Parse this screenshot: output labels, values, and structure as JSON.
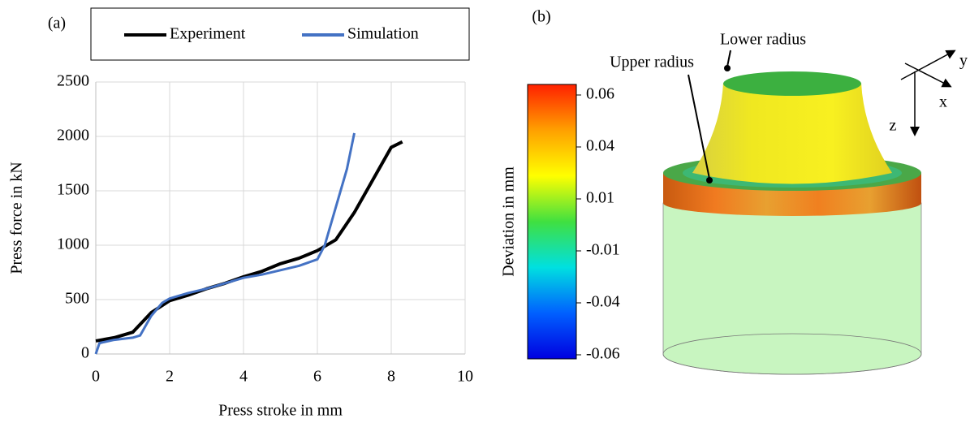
{
  "chart_data": [
    {
      "type": "line",
      "panel_label": "(a)",
      "x_label": "Press stroke in mm",
      "y_label": "Press force in kN",
      "xlim": [
        0,
        10
      ],
      "xticks": [
        0,
        2,
        4,
        6,
        8,
        10
      ],
      "ylim": [
        0,
        2500
      ],
      "yticks": [
        0,
        500,
        1000,
        1500,
        2000,
        2500
      ],
      "grid": true,
      "series": [
        {
          "name": "Experiment",
          "color": "#000000",
          "x": [
            0,
            0.5,
            1,
            1.5,
            2,
            2.5,
            3,
            3.5,
            4,
            4.5,
            5,
            5.5,
            6,
            6.5,
            7,
            7.5,
            8,
            8.3
          ],
          "values": [
            120,
            150,
            200,
            380,
            490,
            540,
            600,
            650,
            710,
            760,
            830,
            880,
            950,
            1050,
            1300,
            1600,
            1900,
            1950
          ]
        },
        {
          "name": "Simulation",
          "color": "#4472c4",
          "x": [
            0,
            0.1,
            0.5,
            1,
            1.2,
            1.5,
            1.8,
            2,
            2.5,
            3,
            3.5,
            4,
            4.5,
            5,
            5.5,
            6,
            6.2,
            6.5,
            6.8,
            7
          ],
          "values": [
            0,
            100,
            130,
            150,
            170,
            350,
            470,
            510,
            560,
            600,
            650,
            700,
            730,
            770,
            810,
            870,
            1000,
            1350,
            1700,
            2030
          ]
        }
      ]
    },
    {
      "type": "colorbar",
      "panel_label": "(b)",
      "title": "Deviation in mm",
      "ticks": [
        0.06,
        0.04,
        0.01,
        -0.01,
        -0.04,
        -0.06
      ],
      "colors": [
        "#ff2000",
        "#ffa000",
        "#ffff00",
        "#40e040",
        "#00e0e0",
        "#0060ff",
        "#0000e0"
      ],
      "annotations": [
        "Lower radius",
        "Upper radius"
      ],
      "axis_labels": [
        "x",
        "y",
        "z"
      ]
    }
  ]
}
